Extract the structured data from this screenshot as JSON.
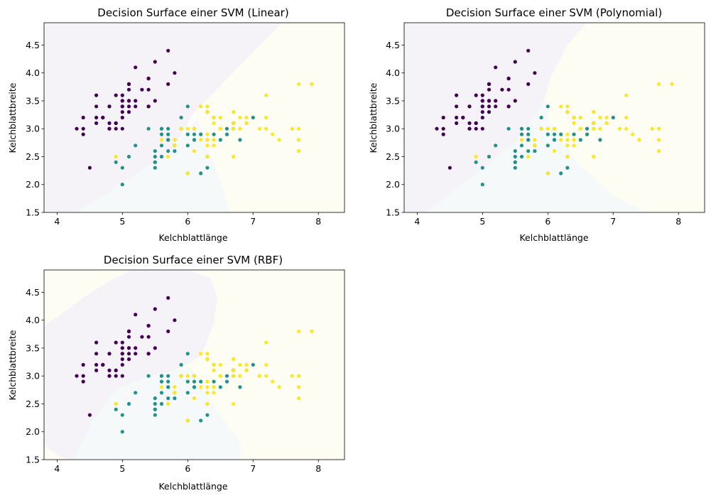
{
  "chart_data": [
    {
      "type": "scatter",
      "title": "Decision Surface einer SVM (Linear)",
      "xlabel": "Kelchblattlänge",
      "ylabel": "Kelchblattbreite",
      "xlim": [
        3.8,
        8.4
      ],
      "ylim": [
        1.5,
        4.9
      ],
      "xticks": [
        4,
        5,
        6,
        7,
        8
      ],
      "yticks": [
        1.5,
        2.0,
        2.5,
        3.0,
        3.5,
        4.0,
        4.5
      ],
      "grid": false,
      "legend": null,
      "decision_surface": {
        "kernel": "linear",
        "regions": [
          {
            "class": 0,
            "color": "#f6f3f8",
            "polygon": [
              [
                3.8,
                1.5
              ],
              [
                4.3,
                1.5
              ],
              [
                5.1,
                2.1
              ],
              [
                5.75,
                2.6
              ],
              [
                6.1,
                3.3
              ],
              [
                7.45,
                4.9
              ],
              [
                3.8,
                4.9
              ]
            ]
          },
          {
            "class": 1,
            "color": "#f5f9fa",
            "polygon": [
              [
                4.3,
                1.5
              ],
              [
                6.65,
                1.5
              ],
              [
                6.5,
                2.05
              ],
              [
                6.15,
                3.2
              ],
              [
                5.75,
                2.6
              ],
              [
                5.1,
                2.1
              ]
            ]
          },
          {
            "class": 2,
            "color": "#fdfdf3",
            "polygon": [
              [
                6.65,
                1.5
              ],
              [
                8.4,
                1.5
              ],
              [
                8.4,
                4.9
              ],
              [
                7.45,
                4.9
              ],
              [
                6.1,
                3.3
              ],
              [
                6.15,
                3.2
              ],
              [
                6.5,
                2.05
              ]
            ]
          }
        ]
      },
      "series_ref": "iris"
    },
    {
      "type": "scatter",
      "title": "Decision Surface einer SVM (Polynomial)",
      "xlabel": "Kelchblattlänge",
      "ylabel": "Kelchblattbreite",
      "xlim": [
        3.8,
        8.4
      ],
      "ylim": [
        1.5,
        4.9
      ],
      "xticks": [
        4,
        5,
        6,
        7,
        8
      ],
      "yticks": [
        1.5,
        2.0,
        2.5,
        3.0,
        3.5,
        4.0,
        4.5
      ],
      "grid": false,
      "legend": null,
      "decision_surface": {
        "kernel": "poly",
        "regions": [
          {
            "class": 0,
            "color": "#f6f3f8",
            "polygon": [
              [
                3.8,
                1.5
              ],
              [
                4.15,
                1.5
              ],
              [
                4.8,
                2.1
              ],
              [
                5.5,
                2.75
              ],
              [
                5.85,
                3.3
              ],
              [
                6.0,
                3.7
              ],
              [
                6.1,
                4.05
              ],
              [
                6.3,
                4.5
              ],
              [
                6.6,
                4.9
              ],
              [
                3.8,
                4.9
              ]
            ]
          },
          {
            "class": 1,
            "color": "#f5f9fa",
            "polygon": [
              [
                4.15,
                1.5
              ],
              [
                7.5,
                1.5
              ],
              [
                7.0,
                1.8
              ],
              [
                6.45,
                2.4
              ],
              [
                6.05,
                3.05
              ],
              [
                5.95,
                3.5
              ],
              [
                6.05,
                3.95
              ],
              [
                6.1,
                4.05
              ],
              [
                6.0,
                3.7
              ],
              [
                5.85,
                3.3
              ],
              [
                5.5,
                2.75
              ],
              [
                4.8,
                2.1
              ]
            ]
          },
          {
            "class": 2,
            "color": "#fdfdf3",
            "polygon": [
              [
                7.5,
                1.5
              ],
              [
                8.4,
                1.5
              ],
              [
                8.4,
                4.9
              ],
              [
                6.6,
                4.9
              ],
              [
                6.3,
                4.5
              ],
              [
                6.1,
                4.05
              ],
              [
                6.05,
                3.95
              ],
              [
                5.95,
                3.5
              ],
              [
                6.05,
                3.05
              ],
              [
                6.45,
                2.4
              ],
              [
                7.0,
                1.8
              ]
            ]
          }
        ]
      },
      "series_ref": "iris"
    },
    {
      "type": "scatter",
      "title": "Decision Surface einer SVM (RBF)",
      "xlabel": "Kelchblattlänge",
      "ylabel": "Kelchblattbreite",
      "xlim": [
        3.8,
        8.4
      ],
      "ylim": [
        1.5,
        4.9
      ],
      "xticks": [
        4,
        5,
        6,
        7,
        8
      ],
      "yticks": [
        1.5,
        2.0,
        2.5,
        3.0,
        3.5,
        4.0,
        4.5
      ],
      "grid": false,
      "legend": null,
      "decision_surface": {
        "kernel": "rbf",
        "base_color": "#fdfdf3",
        "regions": [
          {
            "class": 0,
            "color": "#f6f3f8",
            "polygon": [
              [
                3.8,
                1.75
              ],
              [
                4.05,
                1.55
              ],
              [
                4.25,
                1.5
              ],
              [
                4.55,
                2.2
              ],
              [
                4.9,
                2.75
              ],
              [
                5.3,
                2.95
              ],
              [
                5.8,
                3.1
              ],
              [
                6.2,
                3.35
              ],
              [
                6.4,
                3.95
              ],
              [
                6.45,
                4.4
              ],
              [
                6.35,
                4.75
              ],
              [
                6.0,
                4.9
              ],
              [
                5.15,
                4.9
              ],
              [
                4.8,
                4.7
              ],
              [
                4.4,
                4.4
              ],
              [
                4.0,
                4.05
              ],
              [
                3.8,
                3.9
              ]
            ]
          },
          {
            "class": 1,
            "color": "#f5f9fa",
            "polygon": [
              [
                4.25,
                1.5
              ],
              [
                6.8,
                1.5
              ],
              [
                6.8,
                1.8
              ],
              [
                6.55,
                2.2
              ],
              [
                6.25,
                2.75
              ],
              [
                6.05,
                3.15
              ],
              [
                5.8,
                3.1
              ],
              [
                5.3,
                2.95
              ],
              [
                4.9,
                2.75
              ],
              [
                4.55,
                2.2
              ]
            ]
          }
        ]
      },
      "series_ref": "iris"
    }
  ],
  "class_colors": [
    "#440154",
    "#21918c",
    "#fde725"
  ],
  "iris": {
    "x": [
      5.1,
      4.9,
      4.7,
      4.6,
      5.0,
      5.4,
      4.6,
      5.0,
      4.4,
      4.9,
      5.4,
      4.8,
      4.8,
      4.3,
      5.8,
      5.7,
      5.4,
      5.1,
      5.7,
      5.1,
      5.4,
      5.1,
      4.6,
      5.1,
      4.8,
      5.0,
      5.0,
      5.2,
      5.2,
      4.7,
      4.8,
      5.4,
      5.2,
      5.5,
      4.9,
      5.0,
      5.5,
      4.9,
      4.4,
      5.1,
      5.0,
      4.5,
      4.4,
      5.0,
      5.1,
      4.8,
      5.1,
      4.6,
      5.3,
      5.0,
      7.0,
      6.4,
      6.9,
      5.5,
      6.5,
      5.7,
      6.3,
      4.9,
      6.6,
      5.2,
      5.0,
      5.9,
      6.0,
      6.1,
      5.6,
      6.7,
      5.6,
      5.8,
      6.2,
      5.6,
      5.9,
      6.1,
      6.3,
      6.1,
      6.4,
      6.6,
      6.8,
      6.7,
      6.0,
      5.7,
      5.5,
      5.5,
      5.8,
      6.0,
      5.4,
      6.0,
      6.7,
      6.3,
      5.6,
      5.5,
      5.5,
      6.1,
      5.8,
      5.0,
      5.6,
      5.7,
      5.7,
      6.2,
      5.1,
      5.7,
      6.3,
      5.8,
      7.1,
      6.3,
      6.5,
      7.6,
      4.9,
      7.3,
      6.7,
      7.2,
      6.5,
      6.4,
      6.8,
      5.7,
      5.8,
      6.4,
      6.5,
      7.7,
      7.7,
      6.0,
      6.9,
      5.6,
      7.7,
      6.3,
      6.7,
      7.2,
      6.2,
      6.1,
      6.4,
      7.2,
      7.4,
      7.9,
      6.4,
      6.3,
      6.1,
      7.7,
      6.3,
      6.4,
      6.0,
      6.9,
      6.7,
      6.9,
      5.8,
      6.8,
      6.7,
      6.7,
      6.3,
      6.5,
      6.2,
      5.9
    ],
    "y": [
      3.5,
      3.0,
      3.2,
      3.1,
      3.6,
      3.9,
      3.4,
      3.4,
      2.9,
      3.1,
      3.7,
      3.4,
      3.0,
      3.0,
      4.0,
      4.4,
      3.9,
      3.5,
      3.8,
      3.8,
      3.4,
      3.7,
      3.6,
      3.3,
      3.4,
      3.0,
      3.4,
      3.5,
      3.4,
      3.2,
      3.1,
      3.4,
      4.1,
      4.2,
      3.1,
      3.2,
      3.5,
      3.6,
      3.0,
      3.4,
      3.5,
      2.3,
      3.2,
      3.5,
      3.8,
      3.0,
      3.8,
      3.2,
      3.7,
      3.3,
      3.2,
      3.2,
      3.1,
      2.3,
      2.8,
      2.8,
      3.3,
      2.4,
      2.9,
      2.7,
      2.0,
      3.0,
      2.2,
      2.9,
      2.9,
      3.1,
      3.0,
      2.7,
      2.2,
      2.5,
      3.2,
      2.8,
      2.5,
      2.8,
      2.9,
      3.0,
      2.8,
      3.0,
      2.9,
      2.6,
      2.4,
      2.4,
      2.7,
      2.7,
      3.0,
      3.4,
      3.1,
      2.3,
      3.0,
      2.5,
      2.6,
      3.0,
      2.6,
      2.3,
      2.7,
      3.0,
      2.9,
      2.9,
      2.5,
      2.8,
      3.3,
      2.7,
      3.0,
      2.9,
      3.0,
      3.0,
      2.5,
      2.9,
      2.5,
      3.6,
      3.2,
      2.7,
      3.0,
      2.5,
      2.8,
      3.2,
      3.0,
      3.8,
      2.6,
      2.2,
      3.2,
      2.8,
      2.8,
      2.7,
      3.3,
      3.2,
      2.8,
      3.0,
      2.8,
      3.0,
      2.8,
      3.8,
      2.8,
      2.8,
      2.6,
      3.0,
      3.4,
      3.1,
      3.0,
      3.1,
      3.1,
      3.1,
      2.7,
      3.2,
      3.3,
      3.0,
      2.5,
      3.0,
      3.4,
      3.0
    ],
    "class": [
      0,
      0,
      0,
      0,
      0,
      0,
      0,
      0,
      0,
      0,
      0,
      0,
      0,
      0,
      0,
      0,
      0,
      0,
      0,
      0,
      0,
      0,
      0,
      0,
      0,
      0,
      0,
      0,
      0,
      0,
      0,
      0,
      0,
      0,
      0,
      0,
      0,
      0,
      0,
      0,
      0,
      0,
      0,
      0,
      0,
      0,
      0,
      0,
      0,
      0,
      1,
      1,
      1,
      1,
      1,
      1,
      1,
      1,
      1,
      1,
      1,
      1,
      1,
      1,
      1,
      1,
      1,
      1,
      1,
      1,
      1,
      1,
      1,
      1,
      1,
      1,
      1,
      1,
      1,
      1,
      1,
      1,
      1,
      1,
      1,
      1,
      1,
      1,
      1,
      1,
      1,
      1,
      1,
      1,
      1,
      1,
      1,
      1,
      1,
      1,
      2,
      2,
      2,
      2,
      2,
      2,
      2,
      2,
      2,
      2,
      2,
      2,
      2,
      2,
      2,
      2,
      2,
      2,
      2,
      2,
      2,
      2,
      2,
      2,
      2,
      2,
      2,
      2,
      2,
      2,
      2,
      2,
      2,
      2,
      2,
      2,
      2,
      2,
      2,
      2,
      2,
      2,
      2,
      2,
      2,
      2,
      2,
      2,
      2,
      2
    ]
  }
}
